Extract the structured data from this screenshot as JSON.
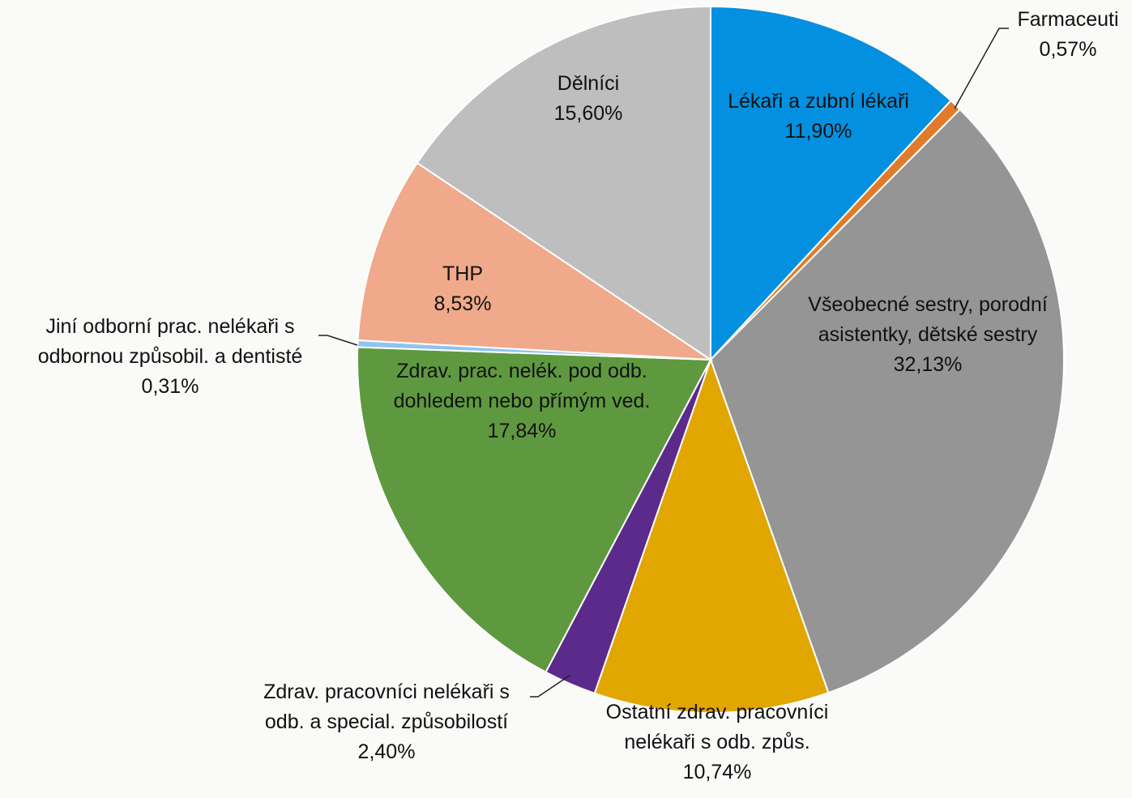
{
  "chart_data": {
    "type": "pie",
    "start_angle_deg": 0,
    "direction": "clockwise",
    "slices": [
      {
        "label_lines": [
          "Lékaři a zubní lékaři"
        ],
        "value": 11.9,
        "value_text": "11,90%",
        "color": "#0390e0"
      },
      {
        "label_lines": [
          "Farmaceuti"
        ],
        "value": 0.57,
        "value_text": "0,57%",
        "color": "#e07b2a"
      },
      {
        "label_lines": [
          "Všeobecné sestry, porodní",
          "asistentky, dětské sestry"
        ],
        "value": 32.13,
        "value_text": "32,13%",
        "color": "#959595"
      },
      {
        "label_lines": [
          "Ostatní zdrav. pracovníci",
          "nelékaři s odb. způs."
        ],
        "value": 10.74,
        "value_text": "10,74%",
        "color": "#e2a600"
      },
      {
        "label_lines": [
          "Zdrav. pracovníci nelékaři s",
          "odb. a special. způsobilostí"
        ],
        "value": 2.4,
        "value_text": "2,40%",
        "color": "#5c2a8a"
      },
      {
        "label_lines": [
          "Zdrav. prac. nelék. pod odb.",
          "dohledem nebo přímým ved."
        ],
        "value": 17.84,
        "value_text": "17,84%",
        "color": "#5f993f"
      },
      {
        "label_lines": [
          "Jiní odborní prac. nelékaři s",
          "odbornou způsobil. a dentisté"
        ],
        "value": 0.31,
        "value_text": "0,31%",
        "color": "#8fc3f0"
      },
      {
        "label_lines": [
          "THP"
        ],
        "value": 8.53,
        "value_text": "8,53%",
        "color": "#f0a98a"
      },
      {
        "label_lines": [
          "Dělníci"
        ],
        "value": 15.6,
        "value_text": "15,60%",
        "color": "#bebebe"
      }
    ]
  }
}
